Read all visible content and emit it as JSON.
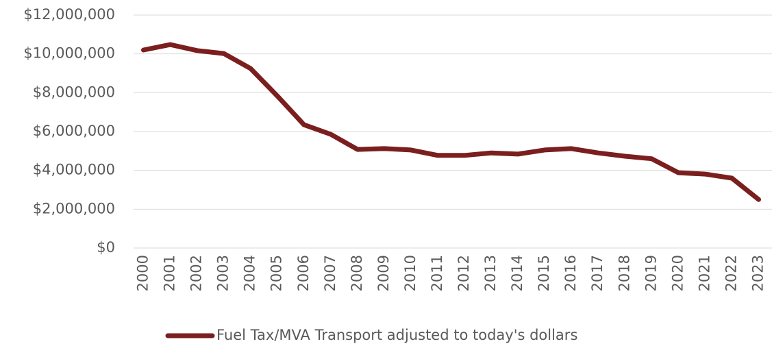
{
  "chart_data": {
    "type": "line",
    "categories": [
      "2000",
      "2001",
      "2002",
      "2003",
      "2004",
      "2005",
      "2006",
      "2007",
      "2008",
      "2009",
      "2010",
      "2011",
      "2012",
      "2013",
      "2014",
      "2015",
      "2016",
      "2017",
      "2018",
      "2019",
      "2020",
      "2021",
      "2022",
      "2023"
    ],
    "series": [
      {
        "name": "Fuel Tax/MVA Transport adjusted to today's dollars",
        "color": "#7b1e1e",
        "values": [
          10200000,
          10480000,
          10170000,
          10020000,
          9250000,
          7840000,
          6350000,
          5860000,
          5080000,
          5120000,
          5050000,
          4770000,
          4770000,
          4900000,
          4840000,
          5050000,
          5120000,
          4900000,
          4730000,
          4600000,
          3880000,
          3810000,
          3600000,
          2500000
        ]
      }
    ],
    "ylim": [
      0,
      12000000
    ],
    "yticks": [
      {
        "value": 0,
        "label": "$0"
      },
      {
        "value": 2000000,
        "label": "$2,000,000"
      },
      {
        "value": 4000000,
        "label": "$4,000,000"
      },
      {
        "value": 6000000,
        "label": "$6,000,000"
      },
      {
        "value": 8000000,
        "label": "$8,000,000"
      },
      {
        "value": 10000000,
        "label": "$10,000,000"
      },
      {
        "value": 12000000,
        "label": "$12,000,000"
      }
    ],
    "grid": true,
    "legend": "bottom"
  }
}
